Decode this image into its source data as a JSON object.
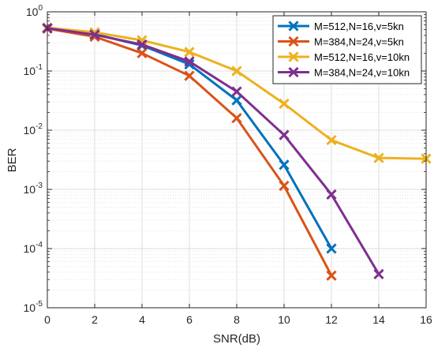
{
  "chart_data": {
    "type": "line",
    "title": "",
    "xlabel": "SNR(dB)",
    "ylabel": "BER",
    "xlim": [
      0,
      16
    ],
    "ylim": [
      1e-05,
      1
    ],
    "yscale": "log",
    "grid": true,
    "legend_position": "top-right",
    "x_ticks": [
      0,
      2,
      4,
      6,
      8,
      10,
      12,
      14,
      16
    ],
    "y_ticks": [
      {
        "value": 1,
        "base": "10",
        "exp": "0"
      },
      {
        "value": 0.1,
        "base": "10",
        "exp": "-1"
      },
      {
        "value": 0.01,
        "base": "10",
        "exp": "-2"
      },
      {
        "value": 0.001,
        "base": "10",
        "exp": "-3"
      },
      {
        "value": 0.0001,
        "base": "10",
        "exp": "-4"
      },
      {
        "value": 1e-05,
        "base": "10",
        "exp": "-5"
      }
    ],
    "series": [
      {
        "name": "M=512,N=16,v=5kn",
        "color": "#0072BD",
        "marker": "x",
        "x": [
          0,
          2,
          4,
          6,
          8,
          10,
          12
        ],
        "y": [
          0.53,
          0.42,
          0.27,
          0.13,
          0.032,
          0.0026,
          0.0001
        ]
      },
      {
        "name": "M=384,N=24,v=5kn",
        "color": "#D95319",
        "marker": "x",
        "x": [
          0,
          2,
          4,
          6,
          8,
          10,
          12
        ],
        "y": [
          0.52,
          0.38,
          0.2,
          0.083,
          0.016,
          0.00115,
          3.5e-05
        ]
      },
      {
        "name": "M=512,N=16,v=10kn",
        "color": "#EDB120",
        "marker": "x",
        "x": [
          0,
          2,
          4,
          6,
          8,
          10,
          12,
          14,
          16
        ],
        "y": [
          0.54,
          0.45,
          0.33,
          0.21,
          0.1,
          0.028,
          0.0068,
          0.0034,
          0.0033
        ]
      },
      {
        "name": "M=384,N=24,v=10kn",
        "color": "#7E2F8E",
        "marker": "x",
        "x": [
          0,
          2,
          4,
          6,
          8,
          10,
          12,
          14
        ],
        "y": [
          0.53,
          0.41,
          0.28,
          0.145,
          0.045,
          0.0083,
          0.00082,
          3.7e-05
        ]
      }
    ]
  }
}
